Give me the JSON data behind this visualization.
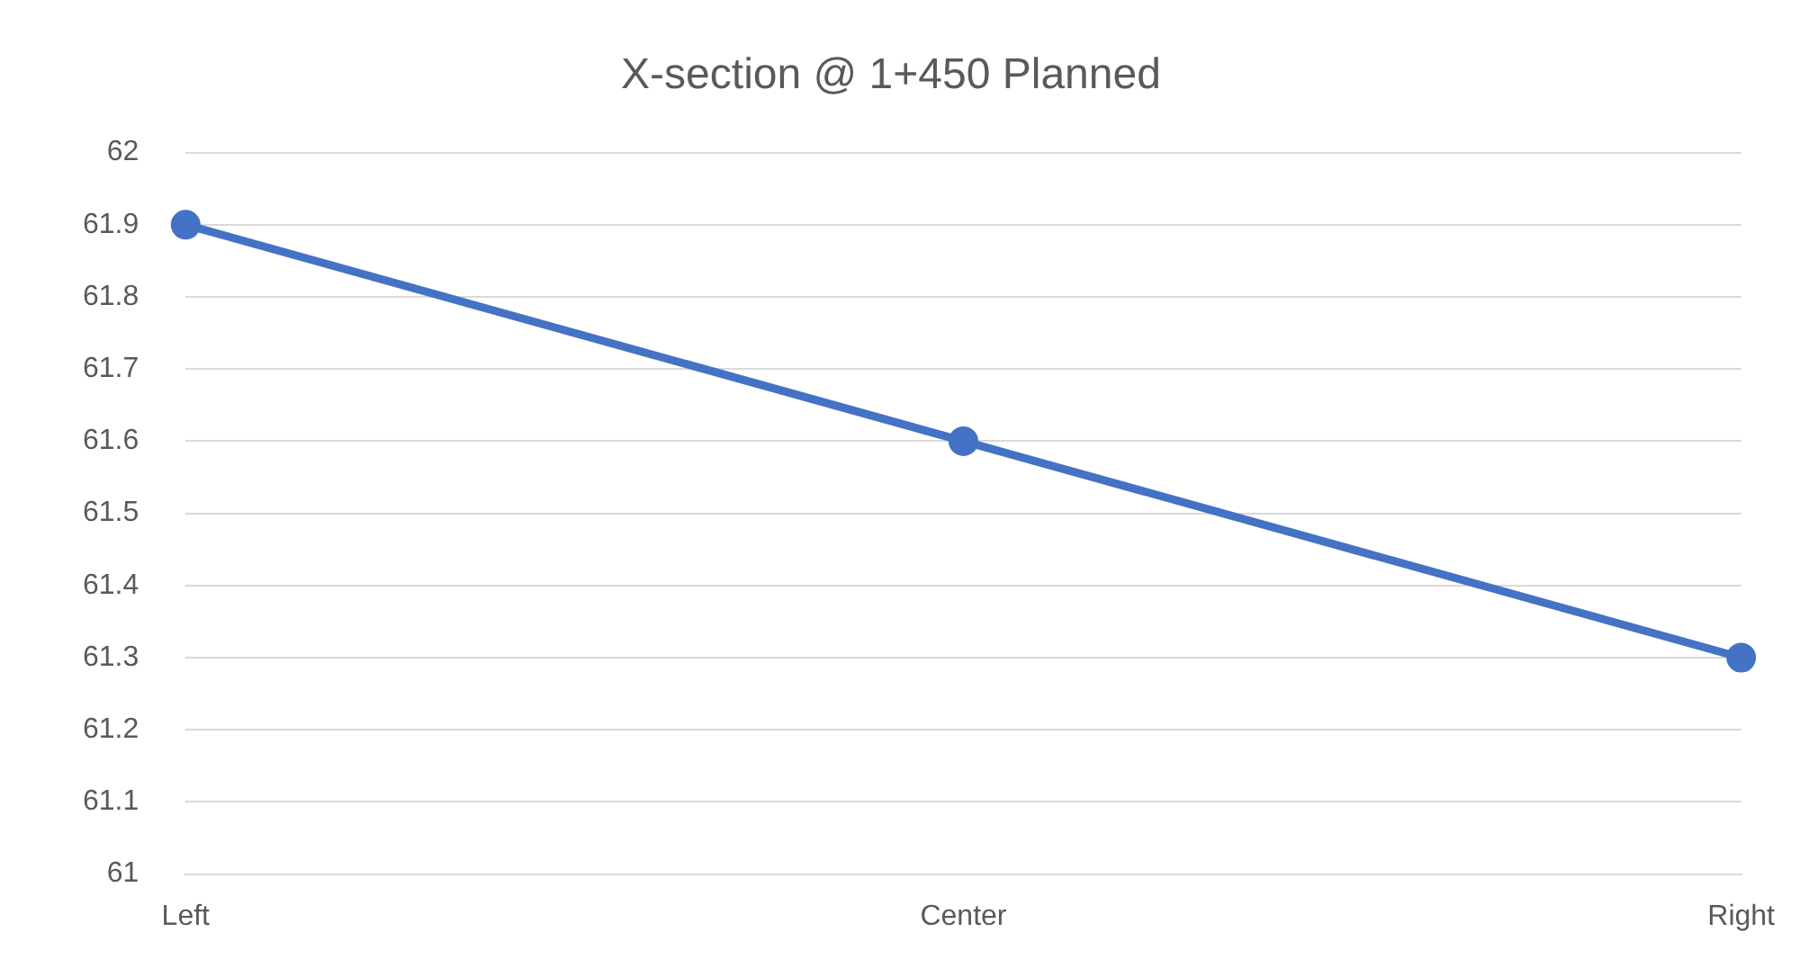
{
  "chart_data": {
    "type": "line",
    "title": "X-section @ 1+450 Planned",
    "categories": [
      "Left",
      "Center",
      "Right"
    ],
    "series": [
      {
        "color": "#4472c4",
        "values": [
          61.9,
          61.6,
          61.3
        ]
      }
    ],
    "ylim": [
      61,
      62
    ],
    "yticks": [
      61,
      61.1,
      61.2,
      61.3,
      61.4,
      61.5,
      61.6,
      61.7,
      61.8,
      61.9,
      62
    ],
    "grid": "y",
    "legend": false,
    "marker": "circle",
    "line_style": "solid"
  }
}
